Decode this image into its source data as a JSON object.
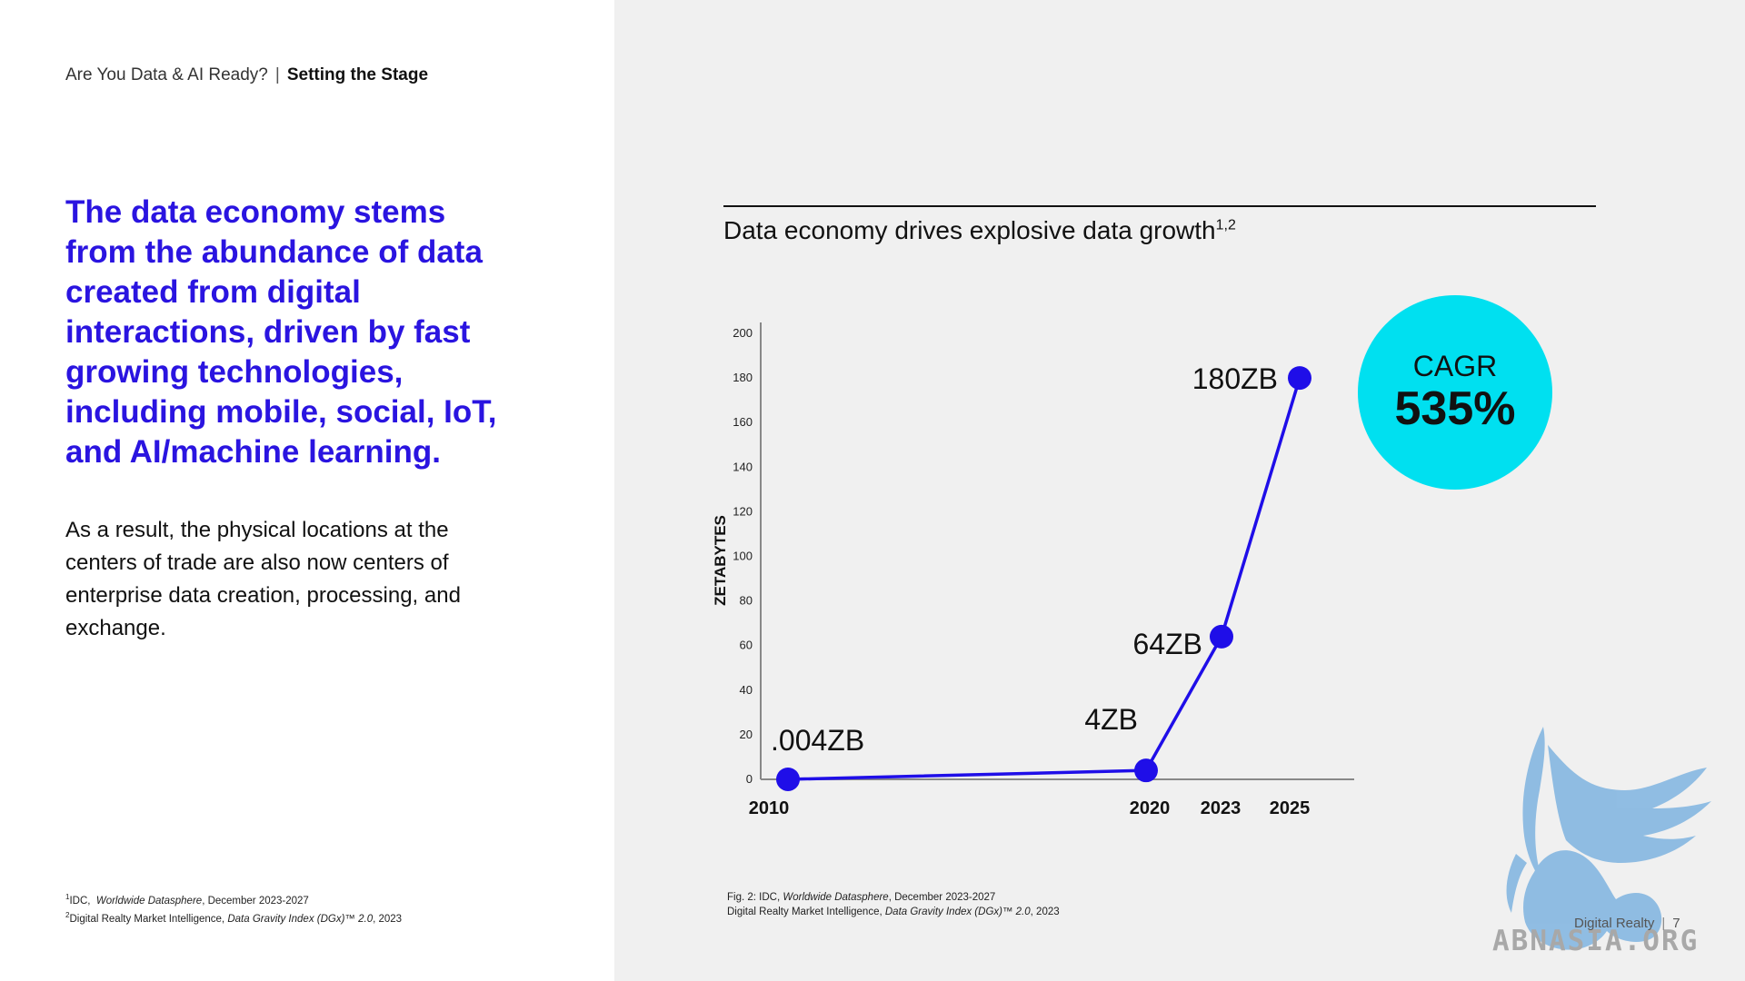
{
  "header": {
    "breadcrumb_parent": "Are You Data & AI Ready?",
    "breadcrumb_separator": "|",
    "breadcrumb_current": "Setting the Stage"
  },
  "main": {
    "headline": "The data economy stems from the abundance of data created from digital interactions, driven by fast growing technologies, including mobile, social, IoT, and AI/machine learning.",
    "body": "As a result, the physical locations at the centers of trade are also now centers of enterprise data creation, processing, and exchange."
  },
  "footnotes": {
    "note1_num": "1",
    "note1_source": "IDC,",
    "note1_title": "Worldwide Datasphere",
    "note1_date": ", December 2023-2027",
    "note2_num": "2",
    "note2_source": "Digital Realty Market Intelligence,",
    "note2_title": "Data Gravity Index (DGx)™ 2.0",
    "note2_date": ", 2023"
  },
  "chart_caption": {
    "line1_prefix": "Fig. 2: IDC,",
    "line1_title": "Worldwide Datasphere",
    "line1_suffix": ", December 2023-2027",
    "line2_prefix": "Digital Realty Market Intelligence,",
    "line2_title": "Data Gravity Index (DGx)™ 2.0",
    "line2_suffix": ", 2023"
  },
  "cagr": {
    "label": "CAGR",
    "value": "535%"
  },
  "footer": {
    "brand": "Digital Realty",
    "separator": "|",
    "page_number": "7"
  },
  "watermark": {
    "text": "ABNASIA.ORG"
  },
  "chart_data": {
    "type": "line",
    "title": "Data economy drives explosive data growth",
    "title_superscript": "1,2",
    "ylabel": "ZETABYTES",
    "xlabel": "",
    "ylim": [
      0,
      200
    ],
    "y_ticks": [
      0,
      20,
      40,
      60,
      80,
      100,
      120,
      140,
      160,
      180,
      200
    ],
    "x_ticks": [
      2010,
      2020,
      2023,
      2025
    ],
    "grid": false,
    "series": [
      {
        "x": [
          2010,
          2020,
          2023,
          2025
        ],
        "y": [
          0.004,
          4,
          64,
          180
        ],
        "labels": [
          ".004ZB",
          "4ZB",
          "64ZB",
          "180ZB"
        ]
      }
    ],
    "colors": {
      "line": "#1f0ee8",
      "axis": "#888888",
      "cagr_fill": "#00e0f0",
      "headline": "#2a14e0"
    }
  }
}
